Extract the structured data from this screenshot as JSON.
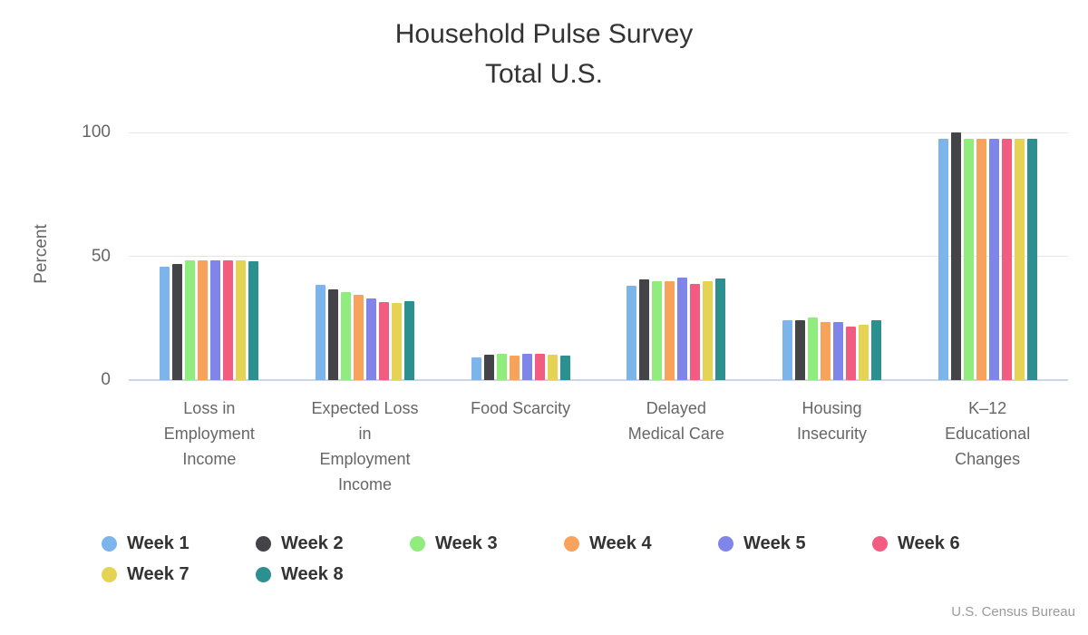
{
  "title": {
    "line1": "Household Pulse Survey",
    "line2": "Total U.S."
  },
  "credits": "U.S. Census Bureau",
  "chart_data": {
    "type": "bar",
    "title": "Household Pulse Survey Total U.S.",
    "xlabel": "",
    "ylabel": "Percent",
    "ylim": [
      0,
      100
    ],
    "yticks": [
      "0",
      "50",
      "100"
    ],
    "grid": true,
    "legend_position": "bottom-left",
    "categories": [
      "Loss in Employment Income",
      "Expected Loss in Employment Income",
      "Food Scarcity",
      "Delayed Medical Care",
      "Housing Insecurity",
      "K–12 Educational Changes"
    ],
    "category_label_lines": [
      [
        "Loss in",
        "Employment",
        "Income"
      ],
      [
        "Expected Loss",
        "in",
        "Employment",
        "Income"
      ],
      [
        "Food Scarcity"
      ],
      [
        "Delayed",
        "Medical Care"
      ],
      [
        "Housing",
        "Insecurity"
      ],
      [
        "K–12",
        "Educational",
        "Changes"
      ]
    ],
    "series": [
      {
        "name": "Week 1",
        "color": "#7cb5ec",
        "values": [
          45.9,
          38.3,
          9.1,
          38.2,
          24.0,
          97.5
        ]
      },
      {
        "name": "Week 2",
        "color": "#434348",
        "values": [
          46.9,
          36.7,
          10.2,
          40.6,
          24.0,
          100.0
        ]
      },
      {
        "name": "Week 3",
        "color": "#90ed7d",
        "values": [
          48.3,
          35.4,
          10.5,
          40.0,
          25.2,
          97.5
        ]
      },
      {
        "name": "Week 4",
        "color": "#f7a35c",
        "values": [
          48.3,
          34.5,
          9.8,
          40.0,
          23.5,
          97.5
        ]
      },
      {
        "name": "Week 5",
        "color": "#8085e9",
        "values": [
          48.3,
          33.0,
          10.5,
          41.4,
          23.6,
          97.5
        ]
      },
      {
        "name": "Week 6",
        "color": "#f15c80",
        "values": [
          48.3,
          31.6,
          10.5,
          39.0,
          21.7,
          97.5
        ]
      },
      {
        "name": "Week 7",
        "color": "#e4d354",
        "values": [
          48.3,
          31.0,
          10.4,
          40.1,
          22.5,
          97.5
        ]
      },
      {
        "name": "Week 8",
        "color": "#2b908f",
        "values": [
          48.0,
          32.0,
          9.8,
          41.2,
          24.3,
          97.5
        ]
      }
    ],
    "colors": {
      "title_text": "#333333",
      "axis_text": "#666666",
      "gridline": "#e6e6e6",
      "axis_line": "#ccd6eb",
      "credits_text": "#9b9b9b",
      "background": "#ffffff"
    }
  }
}
